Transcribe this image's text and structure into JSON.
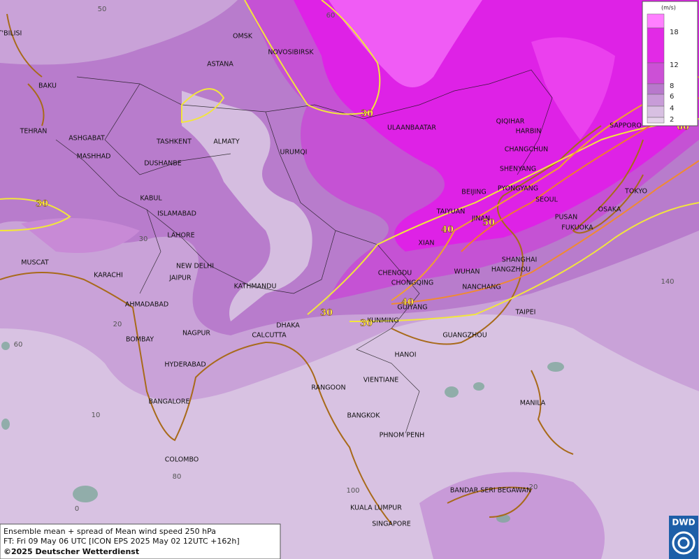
{
  "cities": [
    "T'BILISI",
    "BAKU",
    "TEHRAN",
    "OMSK",
    "NOVOSIBIRSK",
    "ASTANA",
    "ASHGABAT",
    "MASHHAD",
    "TASHKENT",
    "ALMATY",
    "DUSHANBE",
    "URUMQI",
    "ULAANBAATAR",
    "QIQIHAR",
    "HARBIN",
    "CHANGCHUN",
    "SHENYANG",
    "BEIJING",
    "PYONGYANG",
    "SEOUL",
    "TAIYUAN",
    "JINAN",
    "PUSAN",
    "OSAKA",
    "TOKYO",
    "SAPPORO",
    "FUKUOKA",
    "KABUL",
    "ISLAMABAD",
    "LAHORE",
    "XIAN",
    "SHANGHAI",
    "WUHAN",
    "HANGZHOU",
    "CHENGDU",
    "CHONGQING",
    "NANCHANG",
    "NEW DELHI",
    "JAIPUR",
    "KARACHI",
    "MUSCAT",
    "KATHMANDU",
    "AHMADABAD",
    "GUIYANG",
    "TAIPEI",
    "KUNMING",
    "DHAKA",
    "CALCUTTA",
    "NAGPUR",
    "BOMBAY",
    "GUANGZHOU",
    "HYDERABAD",
    "HANOI",
    "VIENTIANE",
    "RANGOON",
    "BANGALORE",
    "MANILA",
    "BANGKOK",
    "PHNOM PENH",
    "COLOMBO",
    "BANDAR SERI BEGAWAN",
    "KUALA LUMPUR",
    "SINGAPORE"
  ],
  "contour_labels": [
    "30",
    "30",
    "40",
    "50",
    "40",
    "30",
    "30",
    "60"
  ],
  "grid_labels": [
    "50",
    "60",
    "30",
    "20",
    "10",
    "0",
    "60",
    "80",
    "100",
    "20",
    "140"
  ],
  "legend": {
    "unit": "(m/s)",
    "ticks": [
      "18",
      "12",
      "8",
      "6",
      "4",
      "2"
    ]
  },
  "footer": {
    "line1": "Ensemble mean + spread of Mean wind speed 250 hPa",
    "line2": "FT: Fri 09 May 06 UTC [ICON EPS 2025 May 02 12UTC +162h]",
    "line3": "©2025 Deutscher Wetterdienst"
  },
  "logo": "DWD"
}
